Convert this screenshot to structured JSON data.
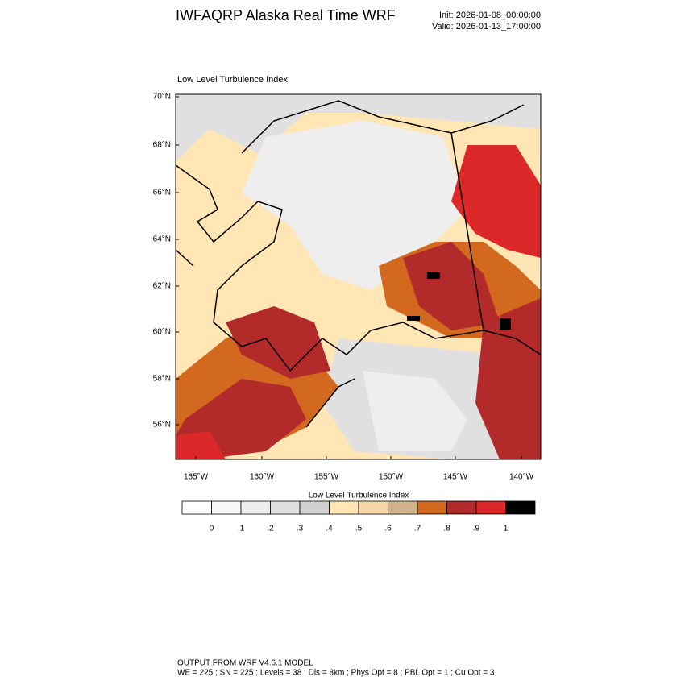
{
  "header": {
    "title": "IWFAQRP Alaska Real Time WRF",
    "init": "Init: 2026-01-08_00:00:00",
    "valid": "Valid: 2026-01-13_17:00:00"
  },
  "map": {
    "title": "Low Level Turbulence Index",
    "lat_labels": [
      "70°N",
      "68°N",
      "66°N",
      "64°N",
      "62°N",
      "60°N",
      "58°N",
      "56°N"
    ],
    "lon_labels": [
      "165°W",
      "160°W",
      "155°W",
      "150°W",
      "145°W",
      "140°W"
    ]
  },
  "colorbar": {
    "title": "Low Level Turbulence Index",
    "colors": [
      "#ffffff",
      "#f7f7f7",
      "#eeeeee",
      "#e0e0e0",
      "#d0d0d0",
      "#ffe6b4",
      "#f5d7a8",
      "#d2b48c",
      "#d2691e",
      "#b22a2a",
      "#dc2828",
      "#000000"
    ],
    "labels": [
      "0",
      ".1",
      ".2",
      ".3",
      ".4",
      ".5",
      ".6",
      ".7",
      ".8",
      ".9",
      "1"
    ]
  },
  "footer": {
    "lines": [
      "OUTPUT FROM WRF V4.6.1 MODEL",
      "WE = 225 ; SN = 225 ; Levels = 38 ; Dis = 8km ; Phys Opt = 8 ; PBL Opt = 1 ; Cu Opt = 3"
    ]
  }
}
